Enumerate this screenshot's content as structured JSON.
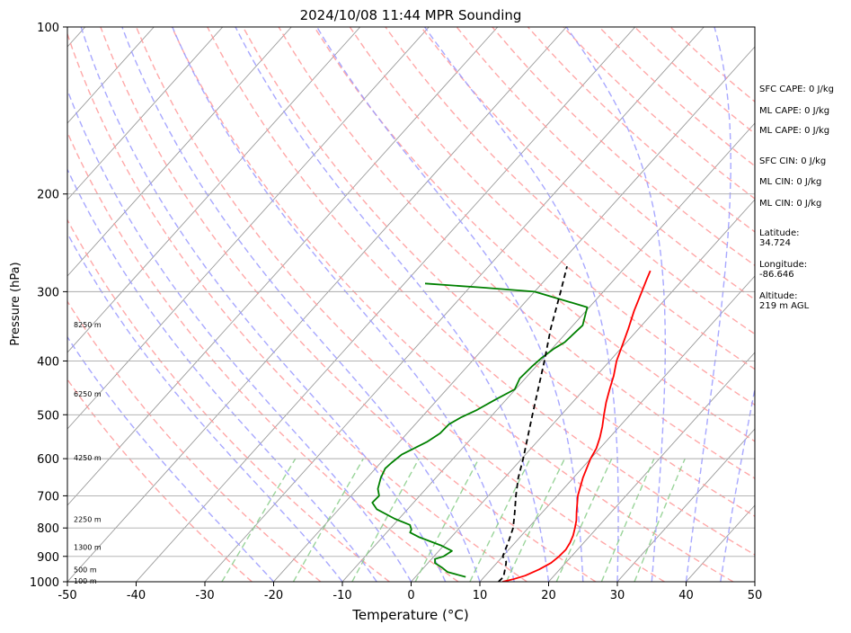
{
  "chart_data": {
    "type": "line",
    "title": "2024/10/08 11:44 MPR Sounding",
    "xlabel": "Temperature (°C)",
    "ylabel": "Pressure (hPa)",
    "xlim": [
      -50,
      50
    ],
    "ylim": [
      1000,
      100
    ],
    "y_scale": "log",
    "skew": "skew-T log-P",
    "grid": true,
    "x_ticks": [
      -50,
      -40,
      -30,
      -20,
      -10,
      0,
      10,
      20,
      30,
      40,
      50
    ],
    "y_ticks": [
      1000,
      900,
      800,
      700,
      600,
      500,
      400,
      300,
      200,
      100
    ],
    "colors": {
      "temperature": "#ff0000",
      "dewpoint": "#008000",
      "parcel": "#000000",
      "dry_adiabats": "#ff9999",
      "moist_adiabats": "#9999ff",
      "mixing_ratio": "#88cc88",
      "isotherms": "#999999"
    },
    "series": [
      {
        "key": "temperature",
        "points": [
          [
            1000,
            13.3
          ],
          [
            990,
            14.5
          ],
          [
            975,
            15.8
          ],
          [
            950,
            17.0
          ],
          [
            925,
            17.9
          ],
          [
            900,
            18.2
          ],
          [
            875,
            18.3
          ],
          [
            850,
            18.0
          ],
          [
            825,
            17.5
          ],
          [
            800,
            16.8
          ],
          [
            775,
            16.0
          ],
          [
            750,
            15.0
          ],
          [
            700,
            13.0
          ],
          [
            650,
            11.4
          ],
          [
            600,
            10.0
          ],
          [
            575,
            9.5
          ],
          [
            550,
            8.6
          ],
          [
            525,
            7.5
          ],
          [
            500,
            6.2
          ],
          [
            475,
            4.9
          ],
          [
            450,
            3.7
          ],
          [
            425,
            2.5
          ],
          [
            400,
            1.0
          ],
          [
            375,
            -0.2
          ],
          [
            350,
            -1.5
          ],
          [
            325,
            -3.0
          ],
          [
            300,
            -4.4
          ],
          [
            285,
            -5.3
          ],
          [
            275,
            -5.9
          ]
        ]
      },
      {
        "key": "dewpoint",
        "points": [
          [
            980,
            7.3
          ],
          [
            970,
            5.6
          ],
          [
            960,
            4.0
          ],
          [
            945,
            2.8
          ],
          [
            925,
            1.0
          ],
          [
            910,
            0.5
          ],
          [
            900,
            1.4
          ],
          [
            880,
            1.9
          ],
          [
            860,
            -0.4
          ],
          [
            830,
            -4.8
          ],
          [
            815,
            -6.6
          ],
          [
            805,
            -6.8
          ],
          [
            790,
            -7.6
          ],
          [
            770,
            -10.6
          ],
          [
            740,
            -14.5
          ],
          [
            720,
            -16.0
          ],
          [
            700,
            -15.9
          ],
          [
            680,
            -17.0
          ],
          [
            650,
            -18.0
          ],
          [
            625,
            -18.6
          ],
          [
            610,
            -18.4
          ],
          [
            590,
            -18.0
          ],
          [
            560,
            -16.0
          ],
          [
            540,
            -15.2
          ],
          [
            520,
            -15.1
          ],
          [
            505,
            -14.2
          ],
          [
            490,
            -12.9
          ],
          [
            470,
            -11.6
          ],
          [
            450,
            -10.1
          ],
          [
            430,
            -10.8
          ],
          [
            410,
            -10.6
          ],
          [
            395,
            -10.3
          ],
          [
            380,
            -9.7
          ],
          [
            370,
            -9.0
          ],
          [
            345,
            -8.6
          ],
          [
            320,
            -10.3
          ],
          [
            300,
            -20.0
          ],
          [
            295,
            -28.0
          ],
          [
            290,
            -37.0
          ]
        ]
      },
      {
        "key": "parcel",
        "points": [
          [
            1000,
            12.7
          ],
          [
            980,
            12.8
          ],
          [
            960,
            12.3
          ],
          [
            930,
            11.5
          ],
          [
            920,
            11.2
          ],
          [
            900,
            10.0
          ],
          [
            850,
            9.0
          ],
          [
            800,
            7.8
          ],
          [
            750,
            6.0
          ],
          [
            700,
            4.0
          ],
          [
            650,
            2.0
          ],
          [
            600,
            0.2
          ],
          [
            550,
            -1.9
          ],
          [
            500,
            -4.2
          ],
          [
            450,
            -6.7
          ],
          [
            400,
            -9.5
          ],
          [
            350,
            -12.8
          ],
          [
            300,
            -16.2
          ],
          [
            270,
            -18.6
          ]
        ]
      }
    ],
    "annotations": {
      "height_labels": [
        {
          "text": "100 m",
          "pressure": 1000
        },
        {
          "text": "500 m",
          "pressure": 955
        },
        {
          "text": "1300 m",
          "pressure": 870
        },
        {
          "text": "2250 m",
          "pressure": 775
        },
        {
          "text": "4250 m",
          "pressure": 600
        },
        {
          "text": "6250 m",
          "pressure": 460
        },
        {
          "text": "8250 m",
          "pressure": 345
        }
      ],
      "indices": [
        "SFC CAPE: 0 J/kg",
        "ML CAPE: 0 J/kg",
        "ML CAPE: 0 J/kg",
        "SFC CIN: 0 J/kg",
        "ML CIN: 0 J/kg",
        "ML CIN: 0 J/kg"
      ],
      "location": {
        "latitude_label": "Latitude:",
        "latitude_value": "34.724",
        "longitude_label": "Longitude:",
        "longitude_value": "-86.646",
        "altitude_label": "Altitude:",
        "altitude_value": "219 m AGL"
      }
    }
  }
}
